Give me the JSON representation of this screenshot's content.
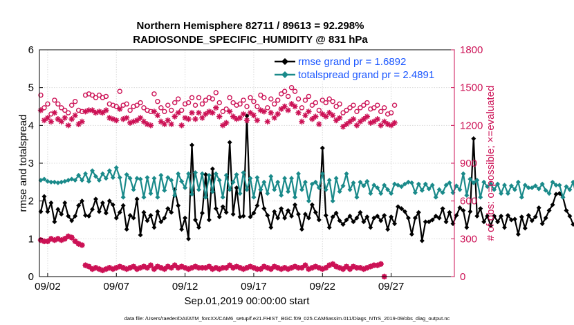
{
  "chart_data": {
    "type": "line",
    "title_line1": "Northern Hemisphere 82711 / 89613 = 92.298%",
    "title_line2": "RADIOSONDE_SPECIFIC_HUMIDITY @ 831 hPa",
    "ylabel_left": "rmse and totalspread",
    "ylabel_right": "# of obs: o=possible; ×=evaluated",
    "xlabel": "Sep.01,2019 00:00:00 start",
    "footnote": "data file: /Users/raeder/DAI/ATM_forcXX/CAM6_setup/f.e21.FHIST_BGC.f09_025.CAM6assim.011/Diags_NTrS_2019-09/obs_diag_output.nc",
    "x_range": [
      1.4,
      31.6
    ],
    "ylim_left": [
      0,
      6
    ],
    "ylim_right": [
      0,
      1800
    ],
    "yticks_left": [
      "0",
      "1",
      "2",
      "3",
      "4",
      "5",
      "6"
    ],
    "yticks_right": [
      "0",
      "300",
      "600",
      "900",
      "1200",
      "1500",
      "1800"
    ],
    "xticks": [
      {
        "day": 2,
        "label": "09/02"
      },
      {
        "day": 7,
        "label": "09/07"
      },
      {
        "day": 12,
        "label": "09/12"
      },
      {
        "day": 17,
        "label": "09/17"
      },
      {
        "day": 22,
        "label": "09/22"
      },
      {
        "day": 27,
        "label": "09/27"
      }
    ],
    "x_start": 1.5,
    "x_step": 0.25,
    "series": [
      {
        "name": "rmse",
        "legend": "rmse grand pr = 1.6892",
        "color": "#000000",
        "marker": "diamond",
        "axis": "left",
        "values": [
          1.72,
          2.12,
          1.72,
          1.95,
          1.45,
          1.78,
          1.65,
          1.95,
          1.6,
          1.48,
          1.6,
          1.88,
          2.0,
          1.62,
          1.6,
          1.78,
          2.05,
          1.72,
          1.95,
          1.68,
          2.0,
          1.9,
          1.55,
          1.7,
          1.88,
          1.25,
          1.62,
          1.55,
          2.05,
          1.1,
          1.7,
          1.48,
          1.62,
          1.3,
          1.72,
          1.45,
          1.55,
          1.8,
          1.7,
          2.3,
          1.88,
          1.25,
          1.55,
          1.0,
          3.48,
          1.5,
          1.3,
          1.68,
          2.7,
          1.5,
          2.85,
          1.8,
          1.58,
          1.85,
          1.7,
          3.55,
          1.65,
          2.35,
          1.58,
          1.6,
          4.25,
          1.58,
          1.68,
          1.88,
          2.3,
          1.8,
          1.62,
          1.3,
          1.72,
          1.55,
          1.8,
          1.55,
          1.75,
          1.6,
          1.9,
          1.65,
          1.25,
          1.65,
          1.55,
          1.9,
          1.7,
          1.5,
          3.4,
          1.62,
          1.3,
          1.58,
          1.68,
          1.48,
          1.38,
          1.5,
          1.6,
          1.45,
          1.55,
          1.7,
          1.45,
          1.58,
          1.3,
          1.55,
          1.6,
          1.48,
          1.62,
          1.25,
          1.58,
          1.4,
          1.85,
          1.8,
          1.72,
          1.55,
          1.12,
          1.55,
          1.7,
          0.95,
          1.45,
          1.45,
          1.5,
          1.6,
          1.55,
          1.8,
          1.45,
          1.7,
          1.4,
          1.62,
          1.82,
          1.75,
          1.3,
          1.72,
          3.65,
          1.6,
          1.8,
          1.45,
          1.6,
          1.35,
          1.6,
          1.45,
          1.6,
          1.3,
          1.62,
          1.5,
          1.52,
          1.12,
          1.58,
          1.28,
          1.62,
          1.48,
          1.58,
          1.82,
          1.4,
          1.55,
          1.75,
          1.9,
          2.18,
          2.2,
          2.1,
          1.75,
          1.6,
          1.38,
          1.48,
          1.72,
          1.05,
          1.6,
          1.38
        ]
      },
      {
        "name": "totalspread",
        "legend": "totalspread grand pr = 2.4891",
        "color": "#1a8a8a",
        "marker": "diamond",
        "axis": "left",
        "values": [
          2.55,
          2.58,
          2.52,
          2.5,
          2.5,
          2.48,
          2.5,
          2.52,
          2.55,
          2.58,
          2.55,
          2.68,
          2.55,
          2.72,
          2.52,
          2.8,
          2.65,
          2.55,
          2.72,
          2.6,
          2.8,
          2.62,
          2.88,
          2.62,
          2.1,
          2.7,
          2.6,
          2.3,
          2.6,
          2.58,
          2.1,
          2.62,
          2.2,
          2.6,
          2.1,
          2.68,
          2.28,
          2.62,
          2.55,
          2.15,
          2.72,
          2.52,
          2.35,
          2.72,
          2.18,
          2.75,
          2.3,
          2.72,
          2.1,
          2.68,
          2.25,
          2.72,
          2.55,
          2.1,
          2.68,
          2.3,
          2.5,
          2.7,
          2.2,
          2.75,
          2.3,
          2.6,
          2.1,
          2.62,
          2.3,
          2.5,
          2.2,
          2.65,
          2.3,
          2.5,
          2.15,
          2.6,
          2.25,
          2.6,
          2.1,
          2.72,
          2.3,
          2.5,
          2.0,
          2.45,
          2.5,
          2.35,
          2.72,
          2.3,
          2.55,
          2.0,
          2.6,
          2.25,
          2.4,
          2.72,
          2.3,
          2.48,
          2.1,
          2.5,
          2.4,
          2.52,
          2.2,
          2.42,
          2.35,
          2.2,
          2.42,
          2.3,
          2.2,
          2.45,
          2.42,
          2.38,
          2.45,
          2.5,
          2.48,
          2.22,
          2.45,
          2.28,
          2.45,
          2.32,
          2.42,
          2.1,
          2.3,
          2.22,
          2.42,
          2.48,
          2.22,
          2.4,
          2.3,
          2.72,
          2.15,
          2.58,
          2.48,
          2.55,
          2.1,
          2.5,
          2.38,
          2.45,
          2.3,
          2.45,
          2.2,
          2.42,
          2.2,
          2.4,
          2.3,
          2.5,
          2.1,
          2.42,
          2.35,
          2.35,
          2.4,
          2.32,
          2.45,
          2.28,
          2.2,
          2.5,
          2.42,
          2.42,
          2.1,
          2.38,
          2.3,
          2.5,
          2.1,
          2.5,
          2.45,
          2.42,
          1.95,
          2.3,
          2.5,
          2.55
        ]
      },
      {
        "name": "possible",
        "color": "#cc1155",
        "marker": "circle",
        "axis": "right",
        "values": [
          1440,
          1340,
          1370,
          1290,
          1400,
          1370,
          1340,
          1320,
          1300,
          1360,
          1390,
          1320,
          1310,
          1440,
          1450,
          1440,
          1420,
          1440,
          1420,
          1430,
          1370,
          1360,
          1350,
          1470,
          1360,
          1370,
          1320,
          1350,
          1360,
          1380,
          1340,
          1320,
          1310,
          1450,
          1390,
          1340,
          1310,
          1360,
          1320,
          1380,
          1410,
          1320,
          1370,
          1380,
          1420,
          1360,
          1420,
          1370,
          1400,
          1420,
          1410,
          1460,
          1380,
          1310,
          1330,
          1420,
          1380,
          1360,
          1370,
          1400,
          1350,
          1420,
          1390,
          1350,
          1440,
          1420,
          1340,
          1410,
          1370,
          1400,
          1450,
          1470,
          1430,
          1500,
          1470,
          1410,
          1340,
          1400,
          1430,
          1360,
          1380,
          1320,
          1400,
          1380,
          1410,
          1390,
          1350,
          1370,
          1300,
          1320,
          1340,
          1360,
          1310,
          1340,
          1360,
          1380,
          1330,
          1340,
          1360,
          1310,
          1340,
          1290,
          1300,
          1360
        ]
      },
      {
        "name": "evaluated",
        "color": "#cc1155",
        "marker": "asterisk",
        "axis": "right",
        "values": [
          1320,
          1240,
          1260,
          1230,
          1300,
          1250,
          1230,
          1260,
          1200,
          1250,
          1280,
          1210,
          1230,
          1310,
          1320,
          1320,
          1300,
          1310,
          1300,
          1320,
          1260,
          1250,
          1240,
          1330,
          1250,
          1260,
          1220,
          1230,
          1240,
          1260,
          1230,
          1210,
          1200,
          1310,
          1280,
          1230,
          1210,
          1240,
          1210,
          1270,
          1300,
          1200,
          1260,
          1250,
          1300,
          1250,
          1300,
          1260,
          1290,
          1310,
          1300,
          1340,
          1270,
          1200,
          1220,
          1310,
          1270,
          1250,
          1260,
          1290,
          1240,
          1300,
          1280,
          1240,
          1320,
          1310,
          1230,
          1300,
          1260,
          1290,
          1330,
          1350,
          1320,
          1370,
          1350,
          1300,
          1230,
          1280,
          1310,
          1250,
          1270,
          1210,
          1290,
          1270,
          1300,
          1280,
          1240,
          1260,
          1190,
          1210,
          1230,
          1250,
          1200,
          1230,
          1250,
          1270,
          1220,
          1230,
          1250,
          1200,
          1230,
          1210,
          1200,
          1220
        ]
      },
      {
        "name": "possible_low",
        "color": "#cc1155",
        "marker": "circle",
        "axis": "right",
        "values": [
          290,
          280,
          280,
          300,
          290,
          300,
          290,
          300,
          320,
          310,
          280,
          260,
          250,
          90,
          80,
          60,
          70,
          60,
          50,
          60,
          70,
          60,
          70,
          80,
          70,
          60,
          70,
          80,
          60,
          70,
          80,
          70,
          90,
          60,
          80,
          70,
          60,
          80,
          70,
          90,
          70,
          80,
          70,
          60,
          70,
          80,
          70,
          70,
          70,
          80,
          60,
          70,
          60,
          70,
          70,
          90,
          70,
          80,
          70,
          60,
          70,
          80,
          70,
          60,
          60,
          80,
          70,
          60,
          80,
          70,
          60,
          70,
          60,
          70,
          80,
          70,
          70,
          90,
          60,
          70,
          80,
          70,
          60,
          70,
          90,
          100,
          80,
          70,
          60,
          80,
          60,
          80,
          70,
          70,
          60,
          70,
          80,
          90,
          90,
          100,
          0
        ]
      },
      {
        "name": "evaluated_low",
        "color": "#cc1155",
        "marker": "asterisk",
        "axis": "right",
        "values": [
          290,
          280,
          280,
          300,
          290,
          300,
          290,
          300,
          320,
          310,
          280,
          260,
          250,
          90,
          80,
          60,
          70,
          60,
          50,
          60,
          70,
          60,
          70,
          80,
          70,
          60,
          70,
          80,
          60,
          70,
          80,
          70,
          90,
          60,
          80,
          70,
          60,
          80,
          70,
          90,
          70,
          80,
          70,
          60,
          70,
          80,
          70,
          70,
          70,
          80,
          60,
          70,
          60,
          70,
          70,
          90,
          70,
          80,
          70,
          60,
          70,
          80,
          70,
          60,
          60,
          80,
          70,
          60,
          80,
          70,
          60,
          70,
          60,
          70,
          80,
          70,
          70,
          90,
          60,
          70,
          80,
          70,
          60,
          70,
          90,
          100,
          80,
          70,
          60,
          80,
          60,
          80,
          70,
          70,
          60,
          70,
          80,
          90,
          90,
          100,
          0
        ]
      }
    ]
  }
}
